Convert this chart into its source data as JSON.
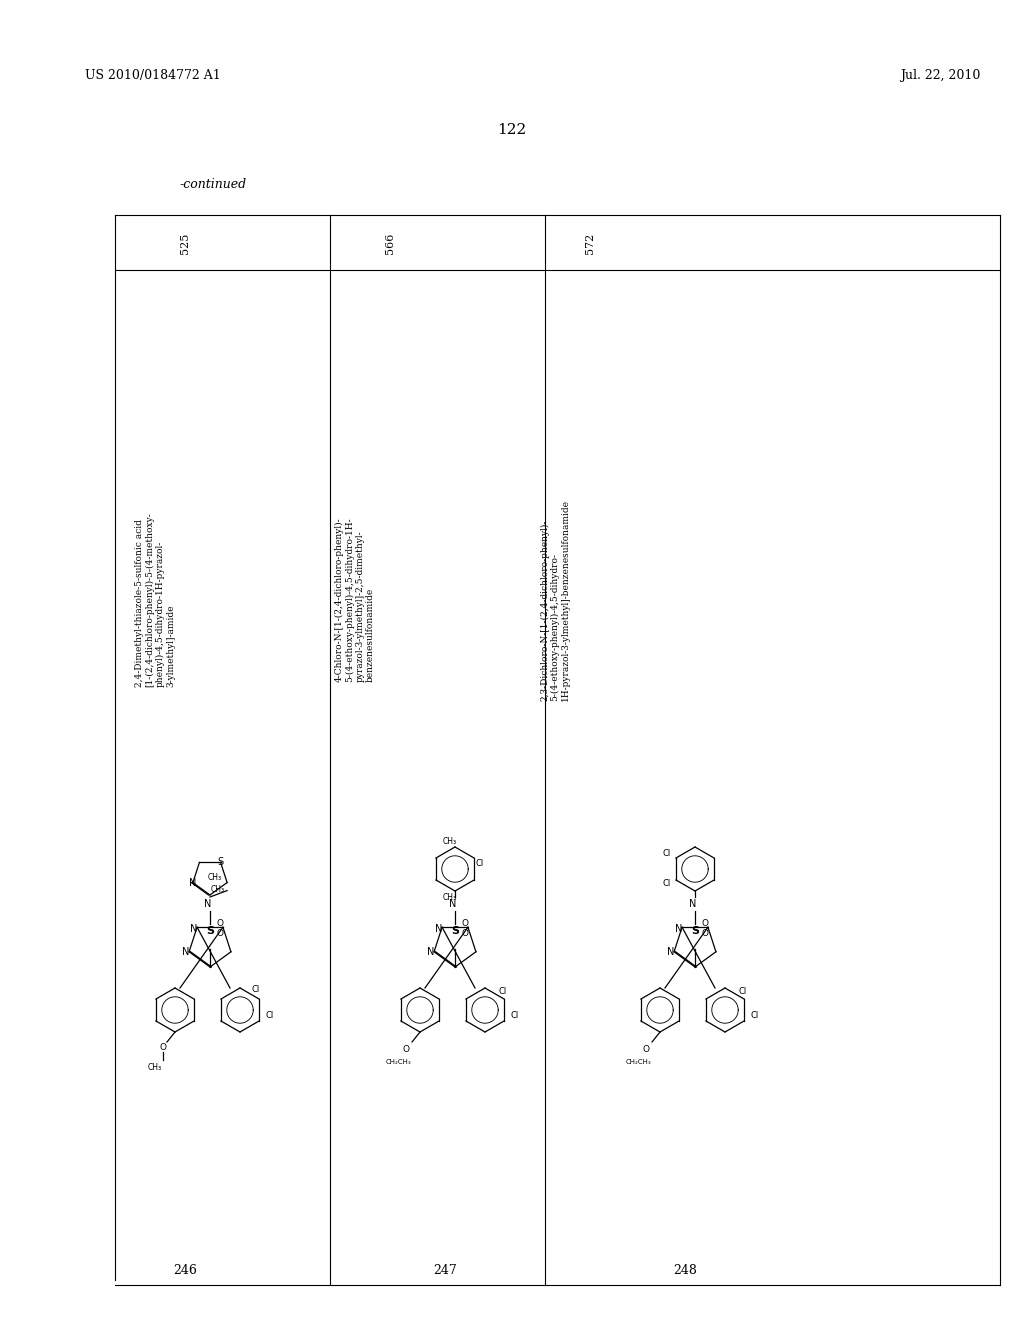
{
  "page_number": "122",
  "patent_number": "US 2010/0184772 A1",
  "patent_date": "Jul. 22, 2010",
  "continued_label": "-continued",
  "background_color": "#ffffff",
  "text_color": "#000000",
  "compounds": [
    {
      "id": "246",
      "mw": "525",
      "name": "2,4-Dimethyl-thiazole-5-sulfonic acid [1-(2,4-dichloro-phenyl)-5-(4-methoxy-phenyl)-4,5-dihydro-1H-pyrazol-3-ylmethyl]-amide"
    },
    {
      "id": "247",
      "mw": "566",
      "name": "4-Chloro-N-[1-(2,4-dichloro-phenyl)-5-(4-ethoxy-phenyl)-4,5-dihydro-1H-pyrazol-3-ylmethyl]-2,5-dimethyl-benzenesulfonamide"
    },
    {
      "id": "248",
      "mw": "572",
      "name": "2,3-Dichloro-N-[1-(2,4-dichloro-phenyl)-5-(4-ethoxy-phenyl)-4,5-dihydro-1H-pyrazol-3-ylmethyl]-benzenesulfonamide"
    }
  ]
}
